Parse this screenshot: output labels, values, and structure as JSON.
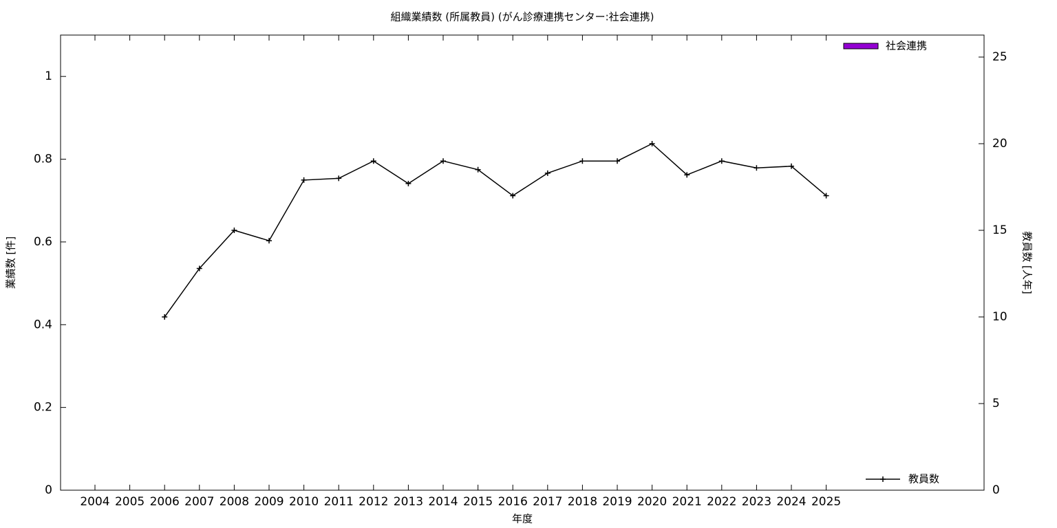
{
  "chart_data": {
    "type": "combo",
    "title": "組織業績数 (所属教員) (がん診療連携センター:社会連携)",
    "x_label": "年度",
    "y_label": "業績数 [件]",
    "y2_label": "教員数 [人年]",
    "categories": [
      "2004",
      "2005",
      "2006",
      "2007",
      "2008",
      "2009",
      "2010",
      "2011",
      "2012",
      "2013",
      "2014",
      "2015",
      "2016",
      "2017",
      "2018",
      "2019",
      "2020",
      "2021",
      "2022",
      "2023",
      "2024",
      "2025"
    ],
    "series": [
      {
        "name": "社会連携",
        "type": "bar",
        "color": "#9400d3",
        "values": [
          0,
          0,
          0,
          0,
          0,
          0,
          0,
          0,
          0,
          0,
          0,
          0,
          0,
          0,
          0,
          0,
          0,
          0,
          0,
          0,
          0,
          0
        ]
      },
      {
        "name": "教員数",
        "type": "line",
        "axis": "y2",
        "color": "#000000",
        "values": [
          null,
          null,
          10,
          12.8,
          15,
          14.4,
          17.9,
          18,
          19,
          17.7,
          19,
          18.5,
          17,
          18.3,
          19,
          19,
          20,
          18.2,
          19,
          18.6,
          18.7,
          17
        ]
      }
    ],
    "ylim": [
      0,
      1.1
    ],
    "yticks": [
      0,
      0.2,
      0.4,
      0.6,
      0.8,
      1
    ],
    "y2lim": [
      0,
      26.27
    ],
    "y2ticks": [
      0,
      5,
      10,
      15,
      20,
      25
    ]
  }
}
